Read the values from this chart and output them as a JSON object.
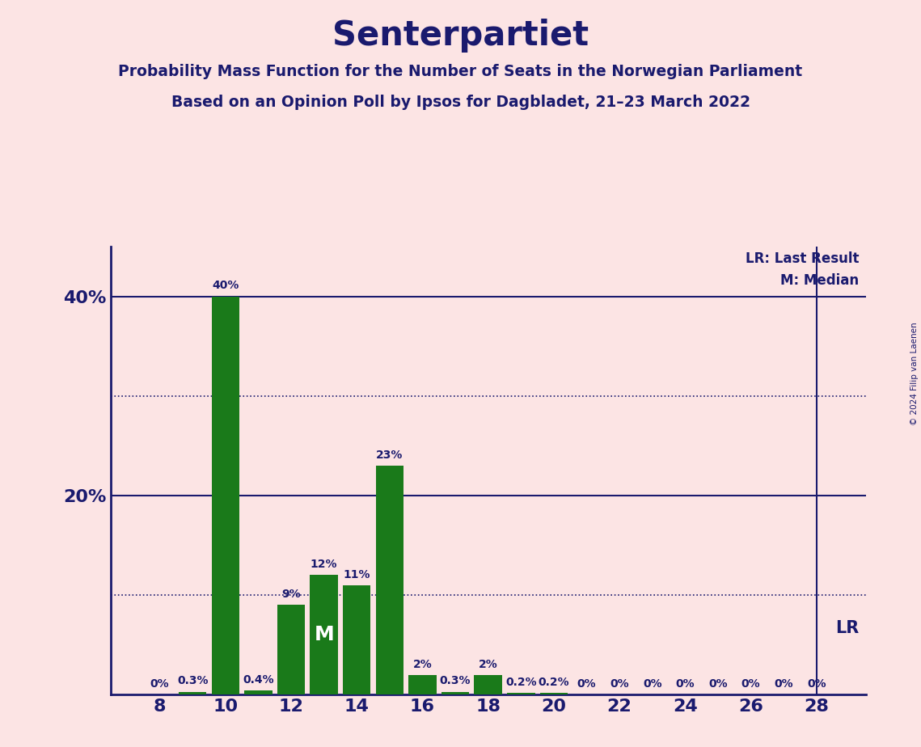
{
  "title": "Senterpartiet",
  "subtitle1": "Probability Mass Function for the Number of Seats in the Norwegian Parliament",
  "subtitle2": "Based on an Opinion Poll by Ipsos for Dagbladet, 21–23 March 2022",
  "copyright": "© 2024 Filip van Laenen",
  "background_color": "#fce4e4",
  "bar_color": "#1a7a1a",
  "title_color": "#1a1a6e",
  "axis_color": "#1a1a6e",
  "seats": [
    8,
    9,
    10,
    11,
    12,
    13,
    14,
    15,
    16,
    17,
    18,
    19,
    20,
    21,
    22,
    23,
    24,
    25,
    26,
    27,
    28
  ],
  "values": [
    0.0,
    0.3,
    40.0,
    0.4,
    9.0,
    12.0,
    11.0,
    23.0,
    2.0,
    0.3,
    2.0,
    0.2,
    0.2,
    0.0,
    0.0,
    0.0,
    0.0,
    0.0,
    0.0,
    0.0,
    0.0
  ],
  "labels": [
    "0%",
    "0.3%",
    "40%",
    "0.4%",
    "9%",
    "12%",
    "11%",
    "23%",
    "2%",
    "0.3%",
    "2%",
    "0.2%",
    "0.2%",
    "0%",
    "0%",
    "0%",
    "0%",
    "0%",
    "0%",
    "0%",
    "0%"
  ],
  "median_seat": 13,
  "lr_seat": 28,
  "ylim": [
    0,
    45
  ],
  "ytick_positions": [
    20,
    40
  ],
  "ytick_labels": [
    "20%",
    "40%"
  ],
  "xticks": [
    8,
    10,
    12,
    14,
    16,
    18,
    20,
    22,
    24,
    26,
    28
  ],
  "solid_line_y": [
    20,
    40
  ],
  "dotted_line_y": [
    10,
    30
  ],
  "lr_line_x": 28,
  "figsize": [
    11.39,
    9.24
  ],
  "dpi": 100
}
